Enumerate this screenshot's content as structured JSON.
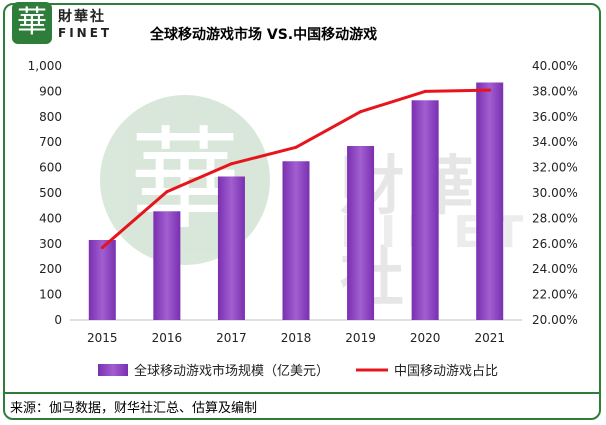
{
  "brand": {
    "mark": "華",
    "name_cn": "財華社",
    "name_en": "FINET"
  },
  "title": "全球移动游戏市场 VS.中国移动游戏",
  "source": "来源：伽马数据，财华社汇总、估算及编制",
  "colors": {
    "bar": "#7a2fb0",
    "bar_light": "#a15fd0",
    "line": "#e8141b",
    "frame": "#2e7d3a"
  },
  "chart_data": {
    "type": "bar",
    "categories": [
      "2015",
      "2016",
      "2017",
      "2018",
      "2019",
      "2020",
      "2021"
    ],
    "series": [
      {
        "name": "全球移动游戏市场规模（亿美元）",
        "type": "bar",
        "axis": "left",
        "values": [
          315,
          428,
          565,
          625,
          685,
          865,
          935
        ]
      },
      {
        "name": "中国移动游戏占比",
        "type": "line",
        "axis": "right",
        "values": [
          25.7,
          30.1,
          32.3,
          33.6,
          36.4,
          38.0,
          38.1
        ]
      }
    ],
    "ylim_left": [
      0,
      1000
    ],
    "yticks_left": [
      "0",
      "100",
      "200",
      "300",
      "400",
      "500",
      "600",
      "700",
      "800",
      "900",
      "1,000"
    ],
    "ylim_right": [
      20,
      40
    ],
    "yticks_right": [
      "20.00%",
      "22.00%",
      "24.00%",
      "26.00%",
      "28.00%",
      "30.00%",
      "32.00%",
      "34.00%",
      "36.00%",
      "38.00%",
      "40.00%"
    ],
    "legend_position": "bottom",
    "grid": false
  }
}
